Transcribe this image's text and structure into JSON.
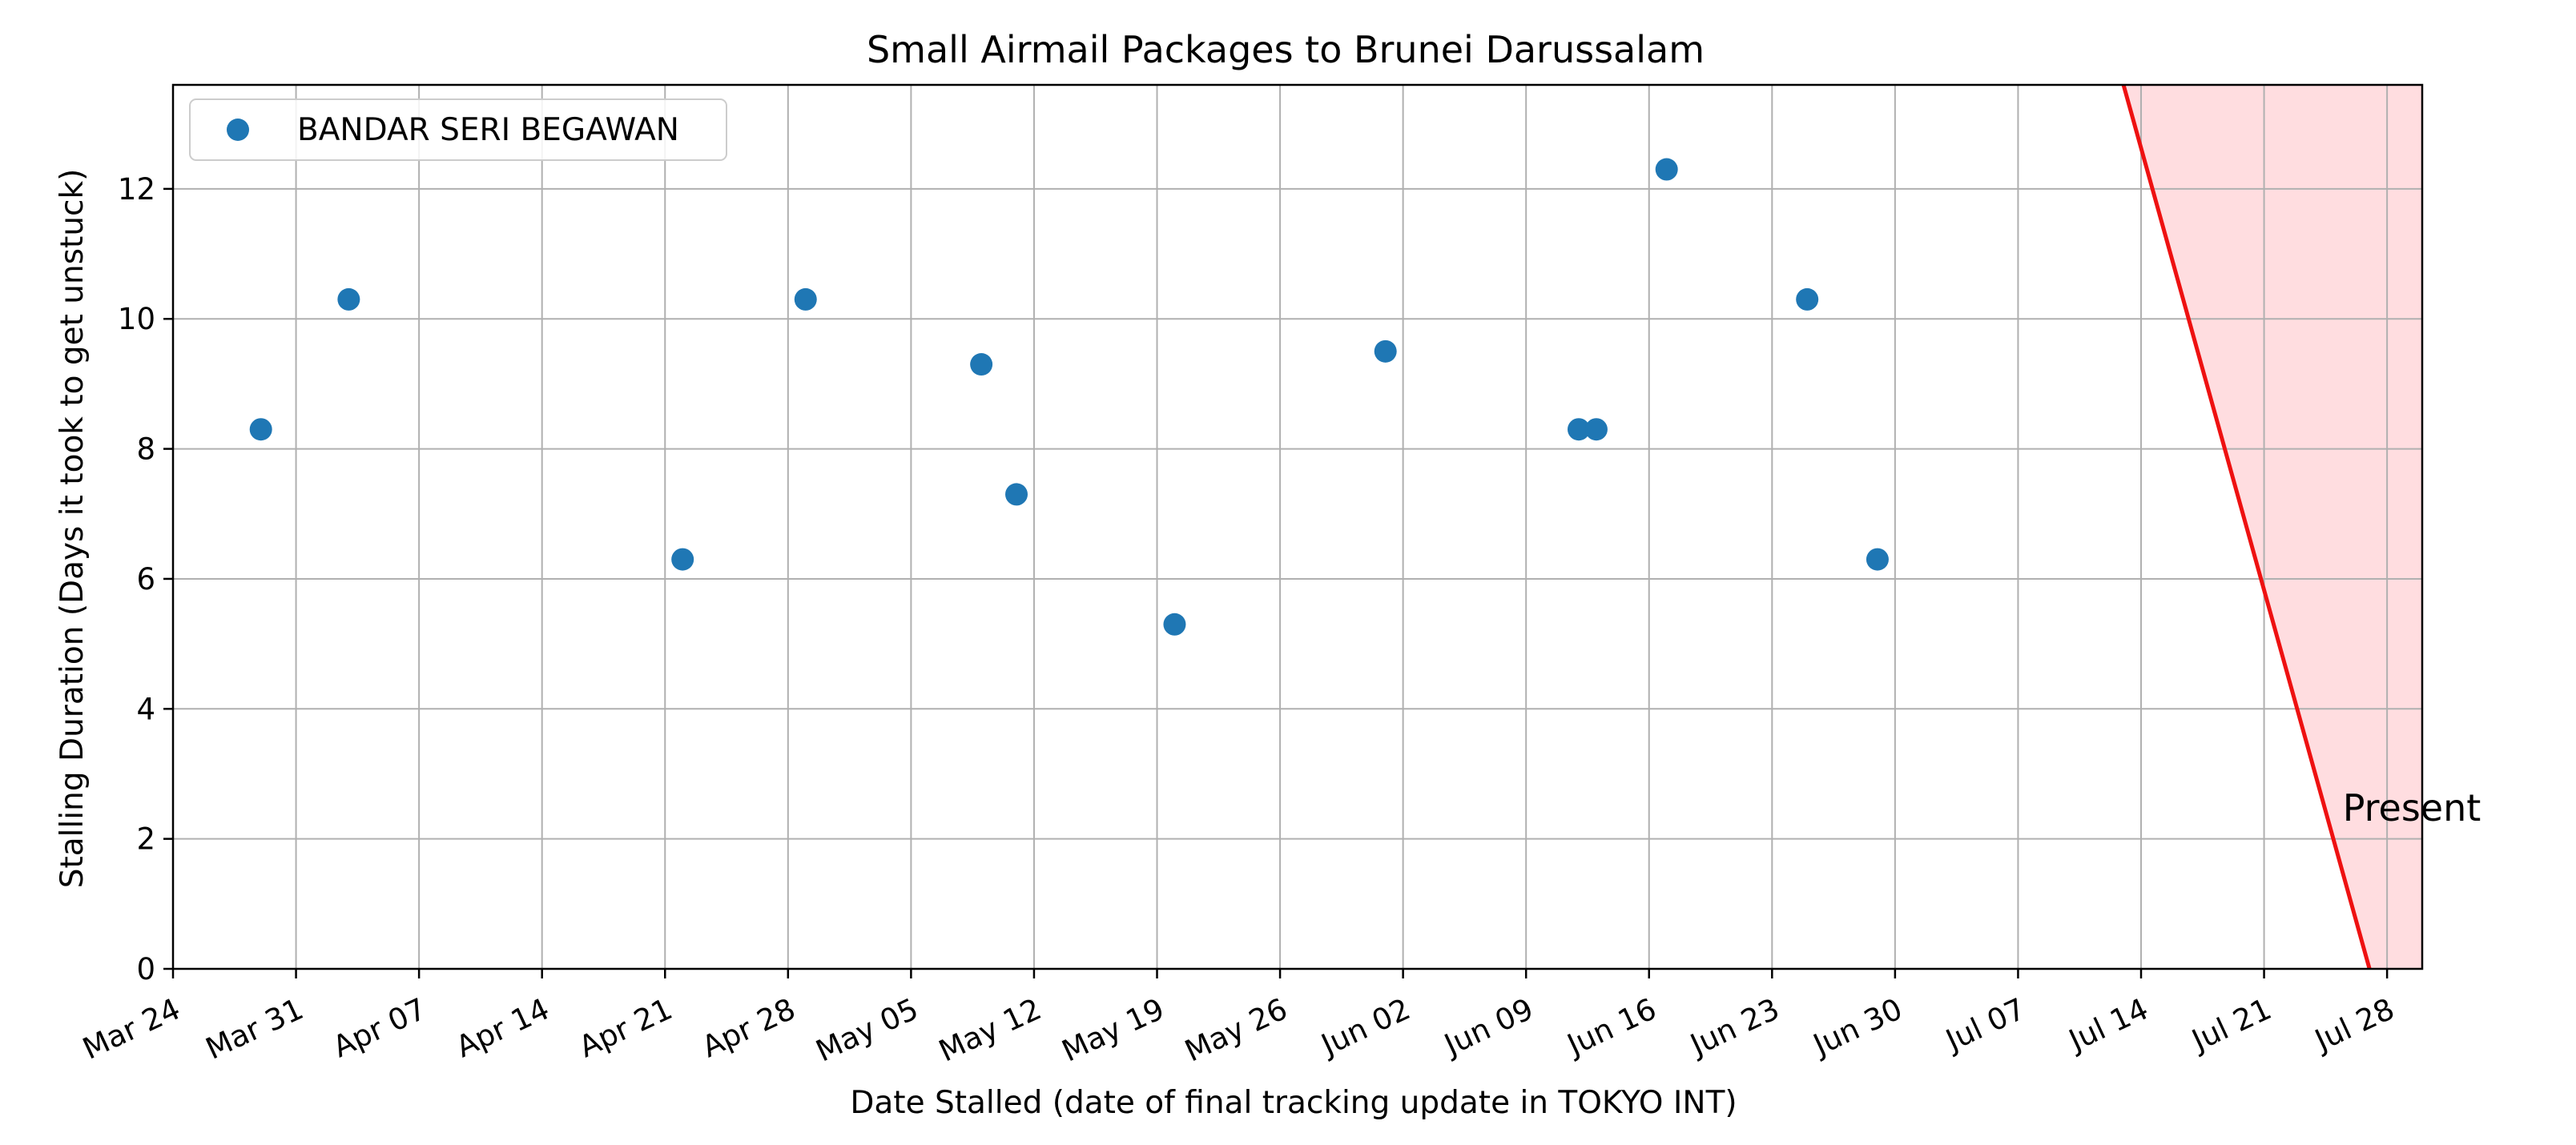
{
  "chart_data": {
    "type": "scatter",
    "title": "Small Airmail Packages to Brunei Darussalam",
    "xlabel": "Date Stalled (date of final tracking update in TOKYO INT)",
    "ylabel": "Stalling Duration (Days it took to get unstuck)",
    "xlim": [
      "2024-03-24",
      "2024-07-30"
    ],
    "ylim": [
      0,
      13.6
    ],
    "x_ticks": [
      "2024-03-24",
      "2024-03-31",
      "2024-04-07",
      "2024-04-14",
      "2024-04-21",
      "2024-04-28",
      "2024-05-05",
      "2024-05-12",
      "2024-05-19",
      "2024-05-26",
      "2024-06-02",
      "2024-06-09",
      "2024-06-16",
      "2024-06-23",
      "2024-06-30",
      "2024-07-07",
      "2024-07-14",
      "2024-07-21",
      "2024-07-28"
    ],
    "x_tick_labels": [
      "Mar 24",
      "Mar 31",
      "Apr 07",
      "Apr 14",
      "Apr 21",
      "Apr 28",
      "May 05",
      "May 12",
      "May 19",
      "May 26",
      "Jun 02",
      "Jun 09",
      "Jun 16",
      "Jun 23",
      "Jun 30",
      "Jul 07",
      "Jul 14",
      "Jul 21",
      "Jul 28"
    ],
    "y_ticks": [
      0,
      2,
      4,
      6,
      8,
      10,
      12
    ],
    "y_tick_labels": [
      "0",
      "2",
      "4",
      "6",
      "8",
      "10",
      "12"
    ],
    "grid": true,
    "legend_position": "top-left",
    "series": [
      {
        "name": "BANDAR SERI BEGAWAN",
        "color": "#1f77b4",
        "points": [
          {
            "x": "2024-03-29",
            "y": 8.3
          },
          {
            "x": "2024-04-03",
            "y": 10.3
          },
          {
            "x": "2024-04-22",
            "y": 6.3
          },
          {
            "x": "2024-04-29",
            "y": 10.3
          },
          {
            "x": "2024-05-09",
            "y": 9.3
          },
          {
            "x": "2024-05-11",
            "y": 7.3
          },
          {
            "x": "2024-05-20",
            "y": 5.3
          },
          {
            "x": "2024-06-01",
            "y": 9.5
          },
          {
            "x": "2024-06-12",
            "y": 8.3
          },
          {
            "x": "2024-06-13",
            "y": 8.3
          },
          {
            "x": "2024-06-17",
            "y": 12.3
          },
          {
            "x": "2024-06-25",
            "y": 10.3
          },
          {
            "x": "2024-06-29",
            "y": 6.3
          }
        ]
      }
    ],
    "present_line": {
      "label": "Present",
      "color": "#ee1111",
      "fill_color": "#ffdde0",
      "start": {
        "x": "2024-07-13",
        "y": 13.6
      },
      "end": {
        "x": "2024-07-27",
        "y": 0
      }
    }
  }
}
